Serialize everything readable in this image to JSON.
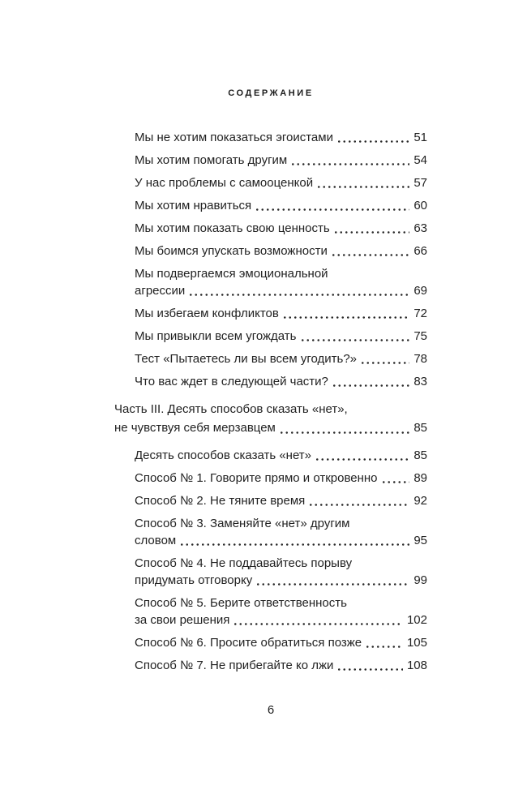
{
  "page": {
    "header_title": "СОДЕРЖАНИЕ",
    "footer_page_number": "6"
  },
  "colors": {
    "background": "#ffffff",
    "text": "#222222",
    "dot_leader": "#2a2a2a"
  },
  "toc": {
    "blocks": [
      {
        "type": "entries",
        "items": [
          {
            "lines": [
              "Мы не хотим показаться эгоистами"
            ],
            "page": "51"
          },
          {
            "lines": [
              "Мы хотим помогать другим"
            ],
            "page": "54"
          },
          {
            "lines": [
              "У нас проблемы с самооценкой"
            ],
            "page": "57"
          },
          {
            "lines": [
              "Мы хотим нравиться"
            ],
            "page": "60"
          },
          {
            "lines": [
              "Мы хотим показать свою ценность"
            ],
            "page": "63"
          },
          {
            "lines": [
              "Мы боимся упускать возможности"
            ],
            "page": "66"
          },
          {
            "lines": [
              "Мы подвергаемся эмоциональной",
              "агрессии"
            ],
            "page": "69"
          },
          {
            "lines": [
              "Мы избегаем конфликтов"
            ],
            "page": "72"
          },
          {
            "lines": [
              "Мы привыкли всем угождать"
            ],
            "page": "75"
          },
          {
            "lines": [
              "Тест «Пытаетесь ли вы всем угодить?»"
            ],
            "page": "78"
          },
          {
            "lines": [
              "Что вас ждет в следующей части?"
            ],
            "page": "83"
          }
        ]
      },
      {
        "type": "heading",
        "lines": [
          "Часть III. Десять способов сказать «нет»,",
          "не чувствуя себя мерзавцем"
        ],
        "page": "85"
      },
      {
        "type": "entries",
        "items": [
          {
            "lines": [
              "Десять способов сказать «нет»"
            ],
            "page": "85"
          },
          {
            "lines": [
              "Способ № 1. Говорите прямо и откровенно"
            ],
            "page": "89"
          },
          {
            "lines": [
              "Способ № 2. Не тяните время"
            ],
            "page": "92"
          },
          {
            "lines": [
              "Способ № 3. Заменяйте «нет» другим",
              "словом"
            ],
            "page": "95"
          },
          {
            "lines": [
              "Способ № 4. Не поддавайтесь порыву",
              "придумать отговорку"
            ],
            "page": "99"
          },
          {
            "lines": [
              "Способ № 5. Берите ответственность",
              "за свои решения"
            ],
            "page": "102"
          },
          {
            "lines": [
              "Способ № 6. Просите обратиться позже"
            ],
            "page": "105"
          },
          {
            "lines": [
              "Способ № 7. Не прибегайте ко лжи"
            ],
            "page": "108"
          }
        ]
      }
    ]
  }
}
